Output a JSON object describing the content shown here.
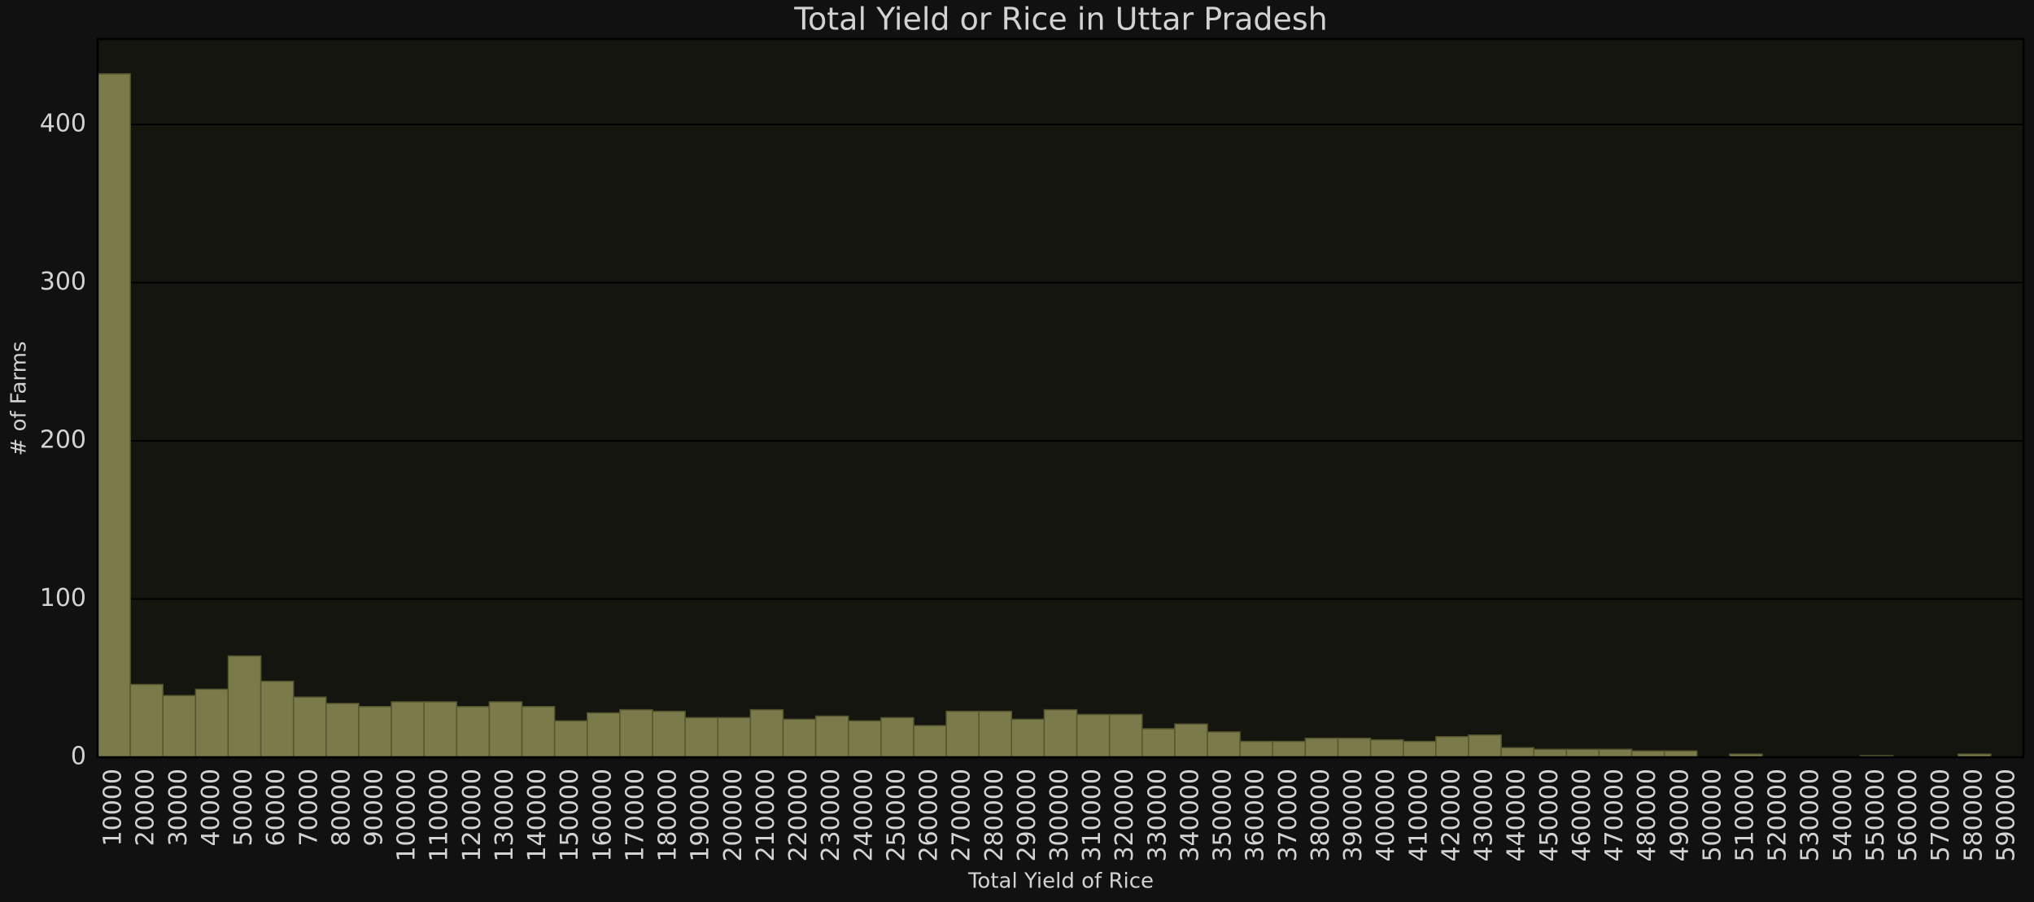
{
  "chart_data": {
    "type": "bar",
    "title": "Total Yield or Rice in Uttar Pradesh",
    "x_label": "Total Yield of Rice",
    "y_label": "# of Farms",
    "categories": [
      10000,
      20000,
      30000,
      40000,
      50000,
      60000,
      70000,
      80000,
      90000,
      100000,
      110000,
      120000,
      130000,
      140000,
      150000,
      160000,
      170000,
      180000,
      190000,
      200000,
      210000,
      220000,
      230000,
      240000,
      250000,
      260000,
      270000,
      280000,
      290000,
      300000,
      310000,
      320000,
      330000,
      340000,
      350000,
      360000,
      370000,
      380000,
      390000,
      400000,
      410000,
      420000,
      430000,
      440000,
      450000,
      460000,
      470000,
      480000,
      490000,
      500000,
      510000,
      520000,
      530000,
      540000,
      550000,
      560000,
      570000,
      580000,
      590000
    ],
    "values": [
      432,
      46,
      39,
      43,
      64,
      48,
      38,
      34,
      32,
      35,
      35,
      32,
      35,
      32,
      23,
      28,
      30,
      29,
      25,
      25,
      30,
      24,
      26,
      23,
      25,
      20,
      29,
      29,
      24,
      30,
      27,
      27,
      18,
      21,
      16,
      10,
      10,
      12,
      12,
      11,
      10,
      13,
      14,
      6,
      5,
      5,
      5,
      4,
      4,
      0,
      2,
      0,
      0,
      0,
      1,
      0,
      0,
      2,
      0
    ],
    "color": "#7a7a4a",
    "ylim": [
      0,
      454
    ],
    "yticks": [
      0,
      100,
      200,
      300,
      400
    ],
    "grid": true
  }
}
